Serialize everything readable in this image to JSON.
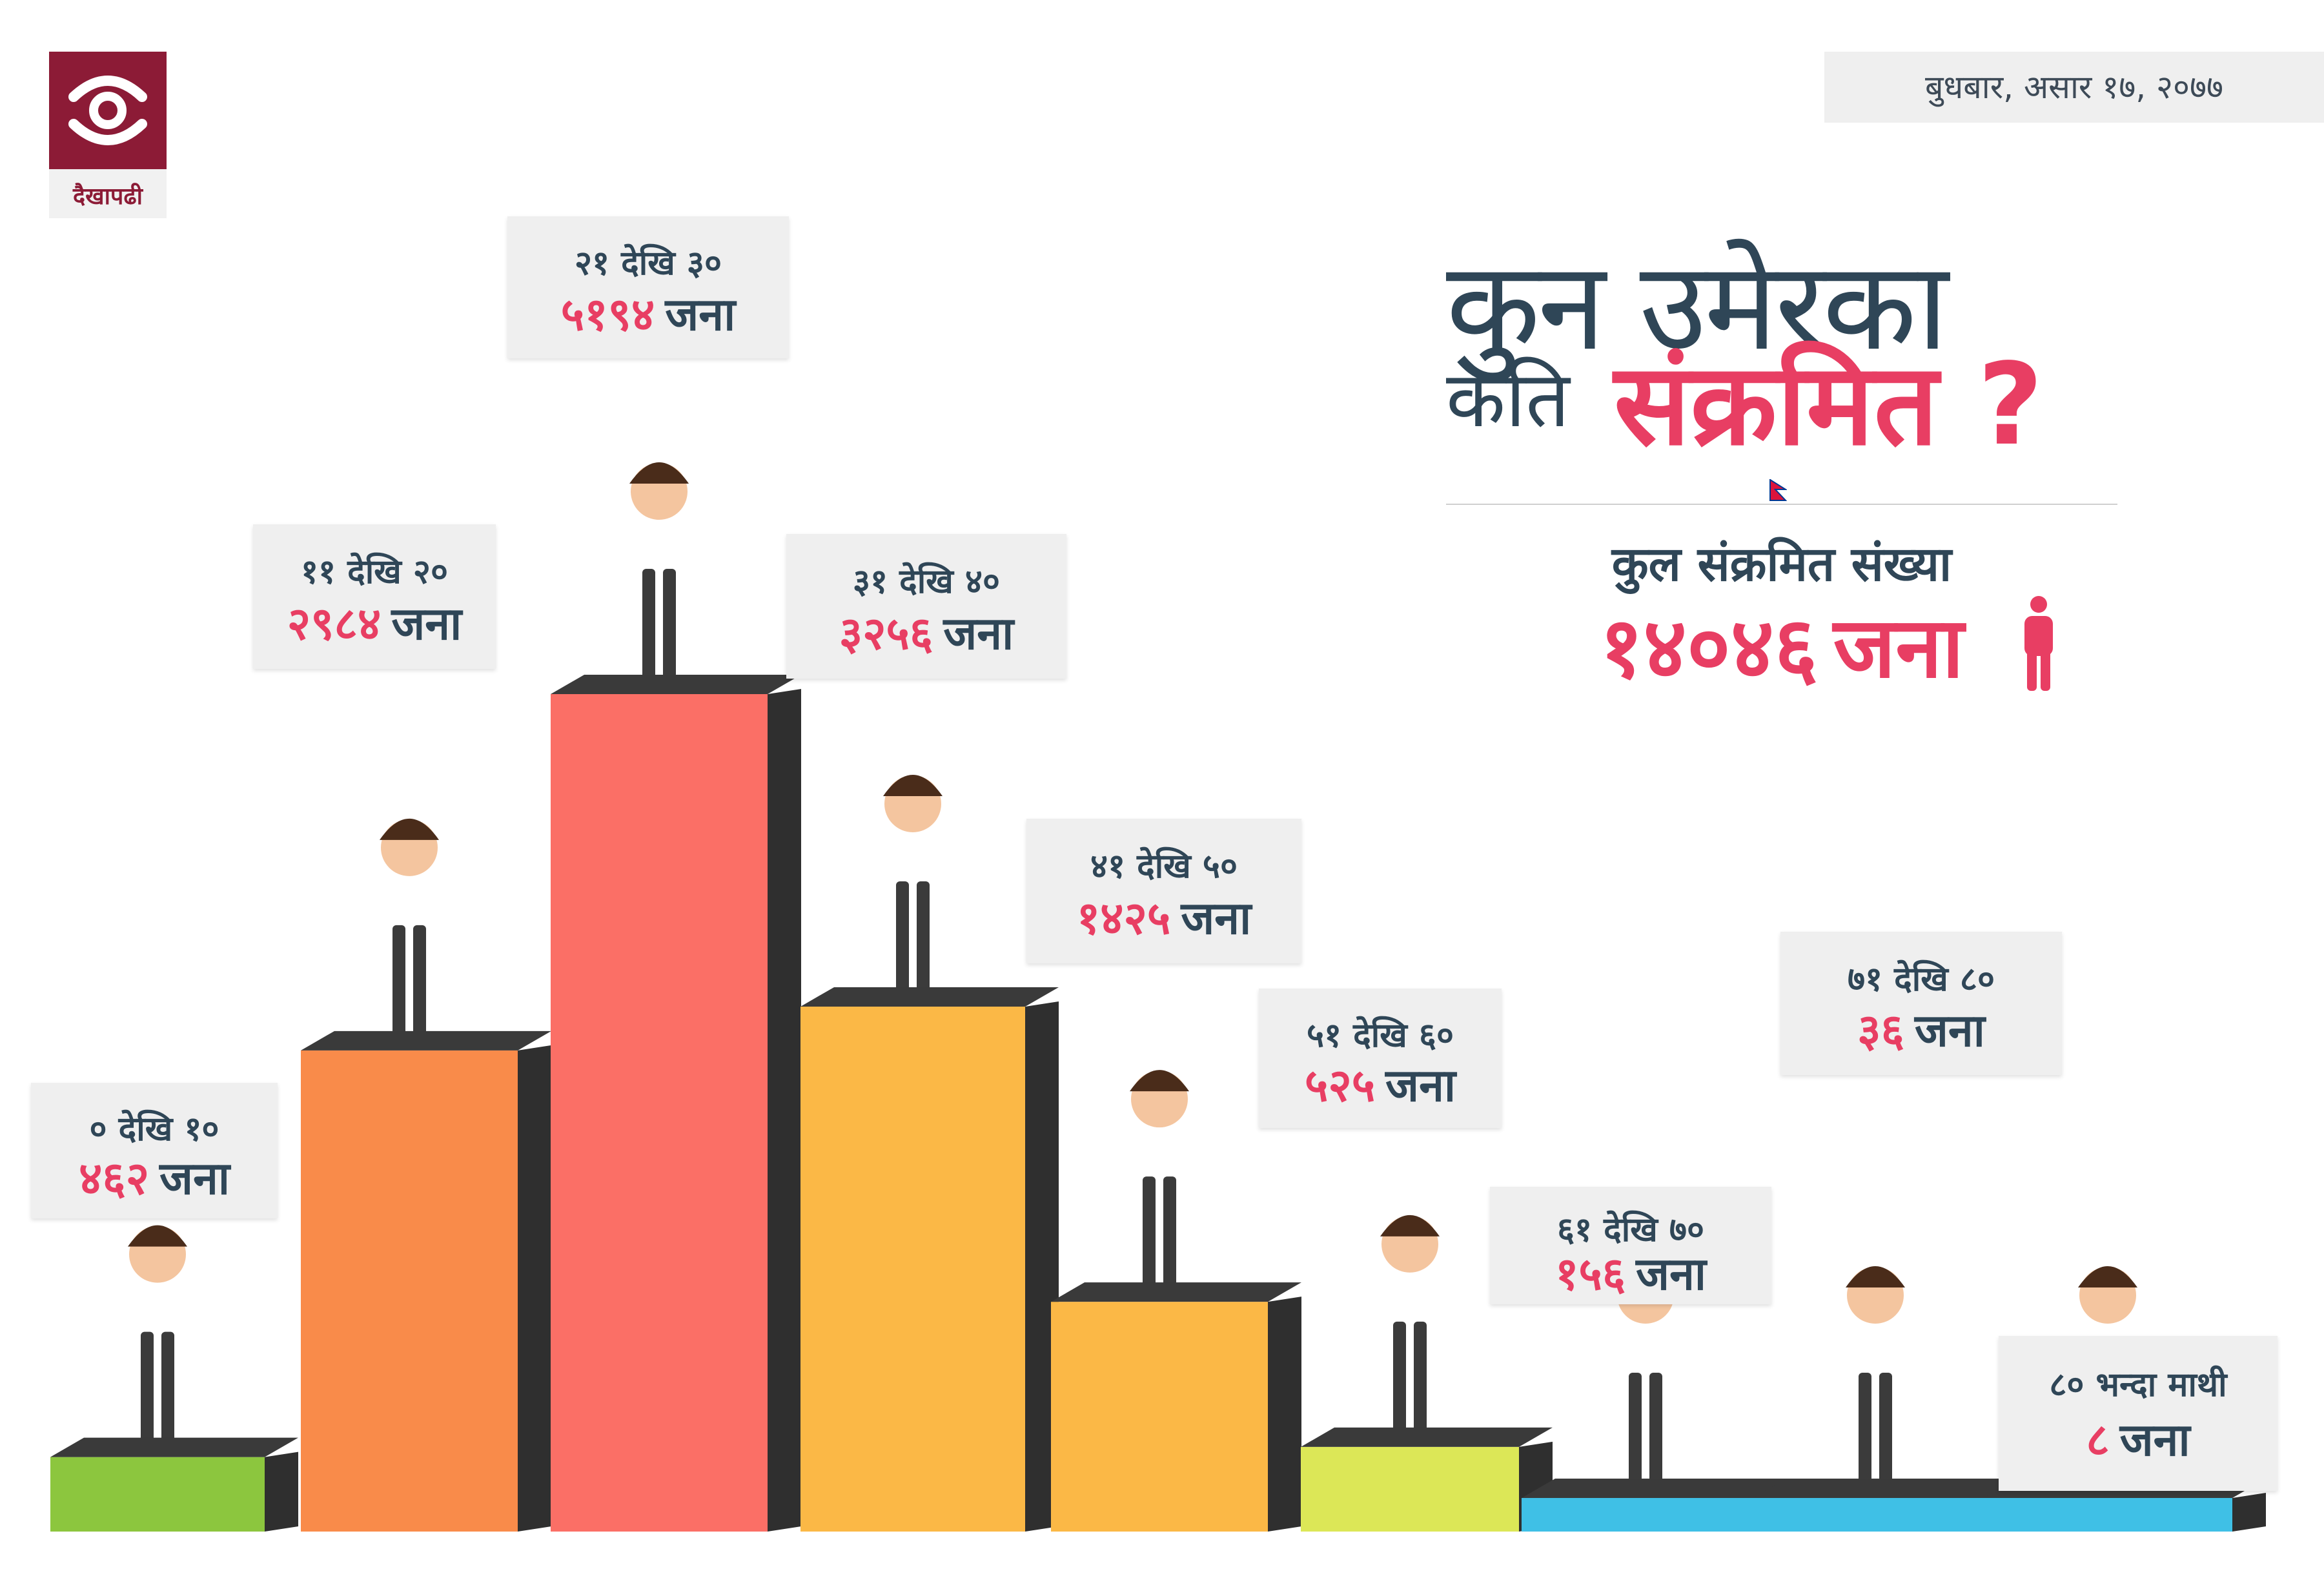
{
  "brand": {
    "name": "दैखापढी",
    "color": "#8c1b36",
    "icon": "logo-mark-icon"
  },
  "date": "बुधबार, असार १७, २०७७",
  "title": {
    "line1": "कुन उमेरका",
    "line2a": "कति",
    "line2b": "संक्रमित ?"
  },
  "total": {
    "label": "कुल संक्रमित संख्या",
    "value": "१४०४६",
    "unit": "जना",
    "icon": "person-icon"
  },
  "colors": {
    "accent": "#e83e63",
    "text": "#2f4657"
  },
  "chart_data": {
    "type": "bar",
    "title": "कुन उमेरका कति संक्रमित ?",
    "categories": [
      "० देखि १०",
      "११ देखि २०",
      "२१ देखि ३०",
      "३१ देखि ४०",
      "४१ देखि ५०",
      "५१ देखि ६०",
      "६१ देखि ७०",
      "७१ देखि ८०",
      "८० भन्दा माथी"
    ],
    "values": [
      462,
      2984,
      5194,
      3256,
      1425,
      525,
      156,
      36,
      8
    ],
    "value_labels": [
      "४६२",
      "२९८४",
      "५१९४",
      "३२५६",
      "१४२५",
      "५२५",
      "१५६",
      "३६",
      "८"
    ],
    "unit": "जना",
    "bar_colors": [
      "#8cc63e",
      "#f98b4a",
      "#fb6f66",
      "#fbb846",
      "#fbb846",
      "#dce757",
      "#3fc0e6",
      "#3fc0e6",
      "#3fc0e6"
    ],
    "grid": false,
    "xlabel": "",
    "ylabel": ""
  }
}
